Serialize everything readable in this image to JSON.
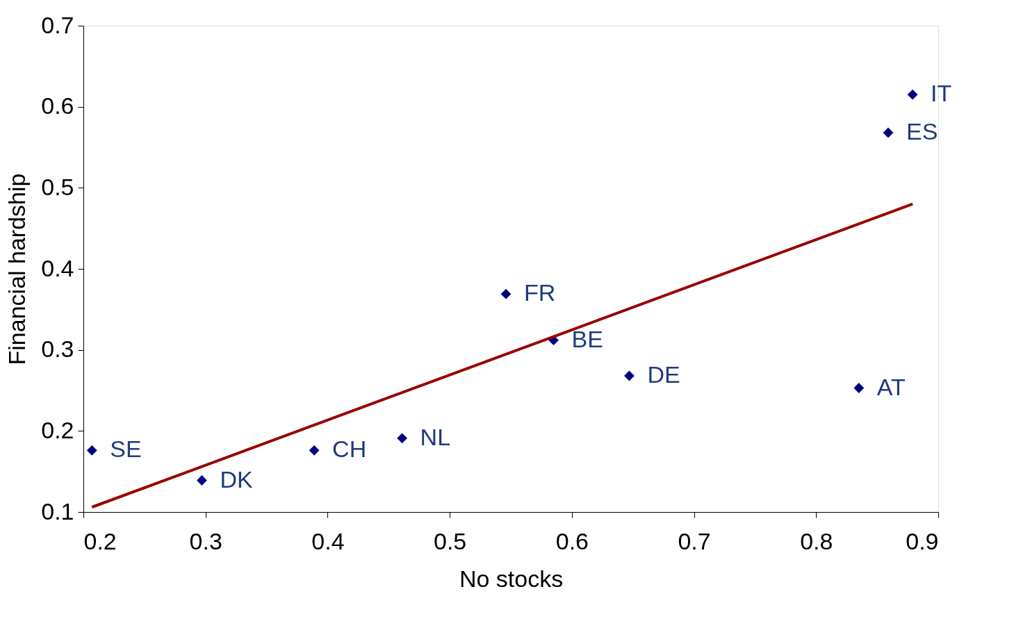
{
  "chart_data": {
    "type": "scatter",
    "xlabel": "No stocks",
    "ylabel": "Financial hardship",
    "xlim": [
      0.2,
      0.9
    ],
    "xticks": [
      0.2,
      0.3,
      0.4,
      0.5,
      0.6,
      0.7,
      0.8,
      0.9
    ],
    "ylim": [
      0.1,
      0.7
    ],
    "yticks": [
      0.1,
      0.2,
      0.3,
      0.4,
      0.5,
      0.6,
      0.7
    ],
    "grid": false,
    "series": [
      {
        "marker": "diamond",
        "color": "#000080",
        "x": [
          0.207,
          0.297,
          0.389,
          0.461,
          0.546,
          0.585,
          0.647,
          0.835,
          0.859,
          0.879
        ],
        "values": [
          0.176,
          0.139,
          0.176,
          0.191,
          0.369,
          0.312,
          0.268,
          0.253,
          0.568,
          0.615
        ]
      },
      {
        "type": "line",
        "color": "#990000",
        "line_style": "solid",
        "x": [
          0.207,
          0.879
        ],
        "values": [
          0.106,
          0.48
        ]
      }
    ],
    "annotations": [
      {
        "text": "SE",
        "x": 0.207,
        "y": 0.176
      },
      {
        "text": "DK",
        "x": 0.297,
        "y": 0.139
      },
      {
        "text": "CH",
        "x": 0.389,
        "y": 0.176
      },
      {
        "text": "NL",
        "x": 0.461,
        "y": 0.191
      },
      {
        "text": "FR",
        "x": 0.546,
        "y": 0.369
      },
      {
        "text": "BE",
        "x": 0.585,
        "y": 0.312
      },
      {
        "text": "DE",
        "x": 0.647,
        "y": 0.268
      },
      {
        "text": "AT",
        "x": 0.835,
        "y": 0.253
      },
      {
        "text": "ES",
        "x": 0.859,
        "y": 0.568
      },
      {
        "text": "IT",
        "x": 0.879,
        "y": 0.615
      }
    ]
  }
}
